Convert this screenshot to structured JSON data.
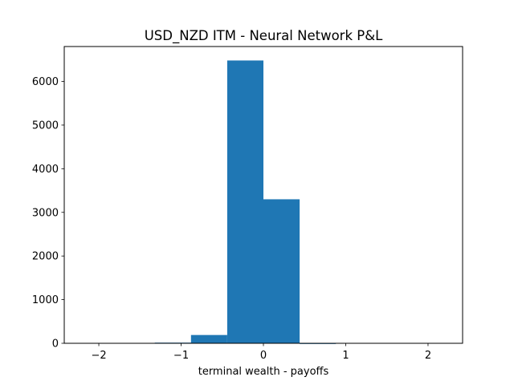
{
  "chart_data": {
    "type": "bar",
    "title": "USD_NZD ITM - Neural Network P&L",
    "xlabel": "terminal wealth - payoffs",
    "ylabel": "",
    "xlim": [
      -2.42,
      2.42
    ],
    "ylim": [
      0,
      6800
    ],
    "x_ticks": [
      -2,
      -1,
      0,
      1,
      2
    ],
    "x_tick_labels": [
      "−2",
      "−1",
      "0",
      "1",
      "2"
    ],
    "y_ticks": [
      0,
      1000,
      2000,
      3000,
      4000,
      5000,
      6000
    ],
    "y_tick_labels": [
      "0",
      "1000",
      "2000",
      "3000",
      "4000",
      "5000",
      "6000"
    ],
    "bins": [
      {
        "x0": -2.2,
        "x1": -1.76,
        "count": 0
      },
      {
        "x0": -1.76,
        "x1": -1.32,
        "count": 0
      },
      {
        "x0": -1.32,
        "x1": -0.88,
        "count": 15
      },
      {
        "x0": -0.88,
        "x1": -0.44,
        "count": 190
      },
      {
        "x0": -0.44,
        "x1": 0.0,
        "count": 6480
      },
      {
        "x0": 0.0,
        "x1": 0.44,
        "count": 3300
      },
      {
        "x0": 0.44,
        "x1": 0.88,
        "count": 3
      },
      {
        "x0": 0.88,
        "x1": 1.32,
        "count": 0
      },
      {
        "x0": 1.32,
        "x1": 1.76,
        "count": 0
      },
      {
        "x0": 1.76,
        "x1": 2.2,
        "count": 0
      }
    ],
    "bar_color": "#1f77b4",
    "grid": false,
    "legend": "none"
  }
}
